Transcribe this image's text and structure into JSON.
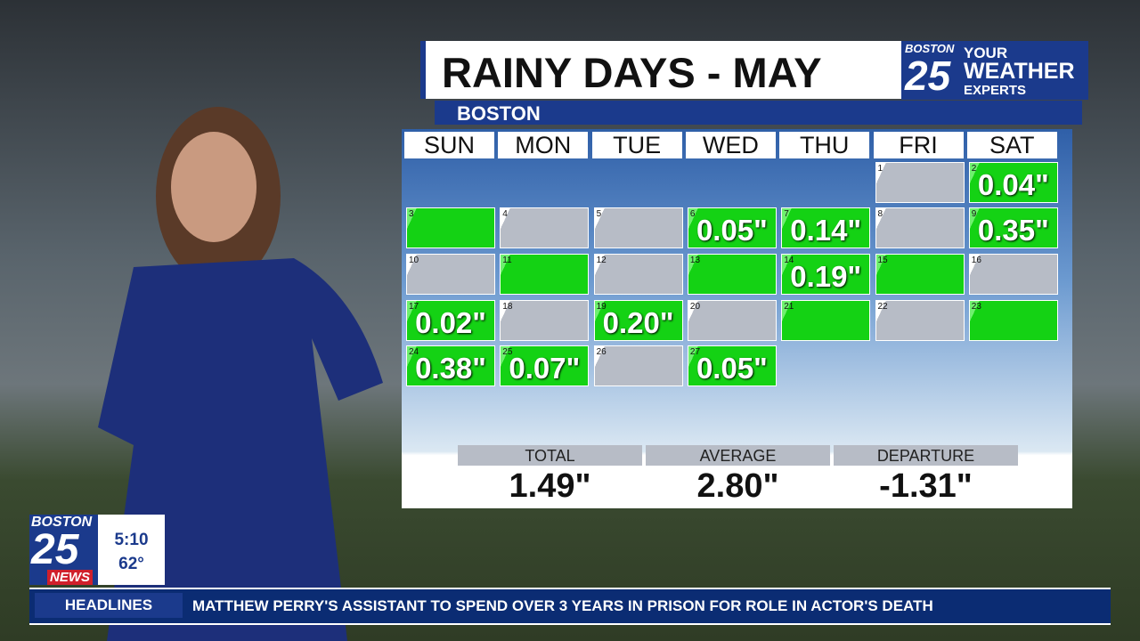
{
  "header": {
    "title": "RAINY DAYS - MAY",
    "subtitle": "BOSTON"
  },
  "logo": {
    "city": "BOSTON",
    "channel": "25",
    "line1": "YOUR",
    "line2": "WEATHER",
    "line3": "EXPERTS"
  },
  "calendar": {
    "weekdays": [
      "SUN",
      "MON",
      "TUE",
      "WED",
      "THU",
      "FRI",
      "SAT"
    ],
    "first_weekday": 5,
    "days": [
      {
        "day": 1,
        "rain": false
      },
      {
        "day": 2,
        "rain": true,
        "amount": "0.04\""
      },
      {
        "day": 3,
        "rain": true
      },
      {
        "day": 4,
        "rain": false
      },
      {
        "day": 5,
        "rain": false
      },
      {
        "day": 6,
        "rain": true,
        "amount": "0.05\""
      },
      {
        "day": 7,
        "rain": true,
        "amount": "0.14\""
      },
      {
        "day": 8,
        "rain": false
      },
      {
        "day": 9,
        "rain": true,
        "amount": "0.35\""
      },
      {
        "day": 10,
        "rain": false
      },
      {
        "day": 11,
        "rain": true
      },
      {
        "day": 12,
        "rain": false
      },
      {
        "day": 13,
        "rain": true
      },
      {
        "day": 14,
        "rain": true,
        "amount": "0.19\""
      },
      {
        "day": 15,
        "rain": true
      },
      {
        "day": 16,
        "rain": false
      },
      {
        "day": 17,
        "rain": true,
        "amount": "0.02\""
      },
      {
        "day": 18,
        "rain": false
      },
      {
        "day": 19,
        "rain": true,
        "amount": "0.20\""
      },
      {
        "day": 20,
        "rain": false
      },
      {
        "day": 21,
        "rain": true
      },
      {
        "day": 22,
        "rain": false
      },
      {
        "day": 23,
        "rain": true
      },
      {
        "day": 24,
        "rain": true,
        "amount": "0.38\""
      },
      {
        "day": 25,
        "rain": true,
        "amount": "0.07\""
      },
      {
        "day": 26,
        "rain": false
      },
      {
        "day": 27,
        "rain": true,
        "amount": "0.05\""
      }
    ]
  },
  "stats": [
    {
      "label": "TOTAL",
      "value": "1.49\""
    },
    {
      "label": "AVERAGE",
      "value": "2.80\""
    },
    {
      "label": "DEPARTURE",
      "value": "-1.31\""
    }
  ],
  "station": {
    "city": "BOSTON",
    "channel": "25",
    "brand": "NEWS",
    "time": "5:10",
    "temperature": "62°"
  },
  "ticker": {
    "label": "HEADLINES",
    "headline": "MATTHEW PERRY'S ASSISTANT TO SPEND OVER 3 YEARS IN PRISON FOR ROLE IN ACTOR'S DEATH"
  }
}
